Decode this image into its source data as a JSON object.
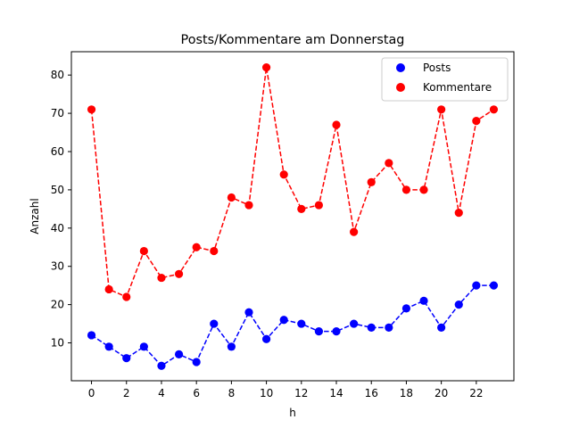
{
  "chart_data": {
    "type": "line",
    "title": "Posts/Kommentare am Donnerstag",
    "xlabel": "h",
    "ylabel": "Anzahl",
    "x": [
      0,
      1,
      2,
      3,
      4,
      5,
      6,
      7,
      8,
      9,
      10,
      11,
      12,
      13,
      14,
      15,
      16,
      17,
      18,
      19,
      20,
      21,
      22,
      23
    ],
    "xticks": [
      "0",
      "2",
      "4",
      "6",
      "8",
      "10",
      "12",
      "14",
      "16",
      "18",
      "20",
      "22"
    ],
    "yticks": [
      "10",
      "20",
      "30",
      "40",
      "50",
      "60",
      "70",
      "80"
    ],
    "xlim": [
      -1.15,
      24.15
    ],
    "ylim": [
      0.1,
      86.1
    ],
    "grid": false,
    "legend_position": "top-right",
    "series": [
      {
        "name": "Posts",
        "color": "#0000ff",
        "values": [
          12,
          9,
          6,
          9,
          4,
          7,
          5,
          15,
          9,
          18,
          11,
          16,
          15,
          13,
          13,
          15,
          14,
          14,
          19,
          21,
          14,
          20,
          25,
          25
        ]
      },
      {
        "name": "Kommentare",
        "color": "#ff0000",
        "values": [
          71,
          24,
          22,
          34,
          27,
          28,
          35,
          34,
          48,
          46,
          82,
          54,
          45,
          46,
          67,
          39,
          52,
          57,
          50,
          50,
          71,
          44,
          68,
          71
        ]
      }
    ]
  }
}
